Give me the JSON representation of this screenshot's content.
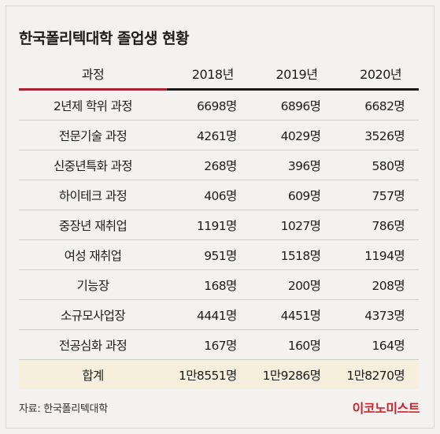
{
  "title": "한국폴리텍대학 졸업생 현황",
  "headers": {
    "course": "과정",
    "years": [
      "2018년",
      "2019년",
      "2020년"
    ]
  },
  "rows": [
    {
      "course": "2년제 학위 과정",
      "values": [
        "6698명",
        "6896명",
        "6682명"
      ]
    },
    {
      "course": "전문기술 과정",
      "values": [
        "4261명",
        "4029명",
        "3526명"
      ]
    },
    {
      "course": "신중년특화 과정",
      "values": [
        "268명",
        "396명",
        "580명"
      ]
    },
    {
      "course": "하이테크 과정",
      "values": [
        "406명",
        "609명",
        "757명"
      ]
    },
    {
      "course": "중장년 재취업",
      "values": [
        "1191명",
        "1027명",
        "786명"
      ]
    },
    {
      "course": "여성 재취업",
      "values": [
        "951명",
        "1518명",
        "1194명"
      ]
    },
    {
      "course": "기능장",
      "values": [
        "168명",
        "200명",
        "208명"
      ]
    },
    {
      "course": "소규모사업장",
      "values": [
        "4441명",
        "4451명",
        "4373명"
      ]
    },
    {
      "course": "전공심화 과정",
      "values": [
        "167명",
        "160명",
        "164명"
      ]
    }
  ],
  "total": {
    "course": "합계",
    "values": [
      "1만8551명",
      "1만9286명",
      "1만8270명"
    ]
  },
  "source": "자료: 한국폴리텍대학",
  "brand": "이코노미스트",
  "colors": {
    "accent": "#a52630",
    "brand": "#c8262e",
    "total_row_bg": "#f6efde",
    "background": "#f3f2f0"
  }
}
